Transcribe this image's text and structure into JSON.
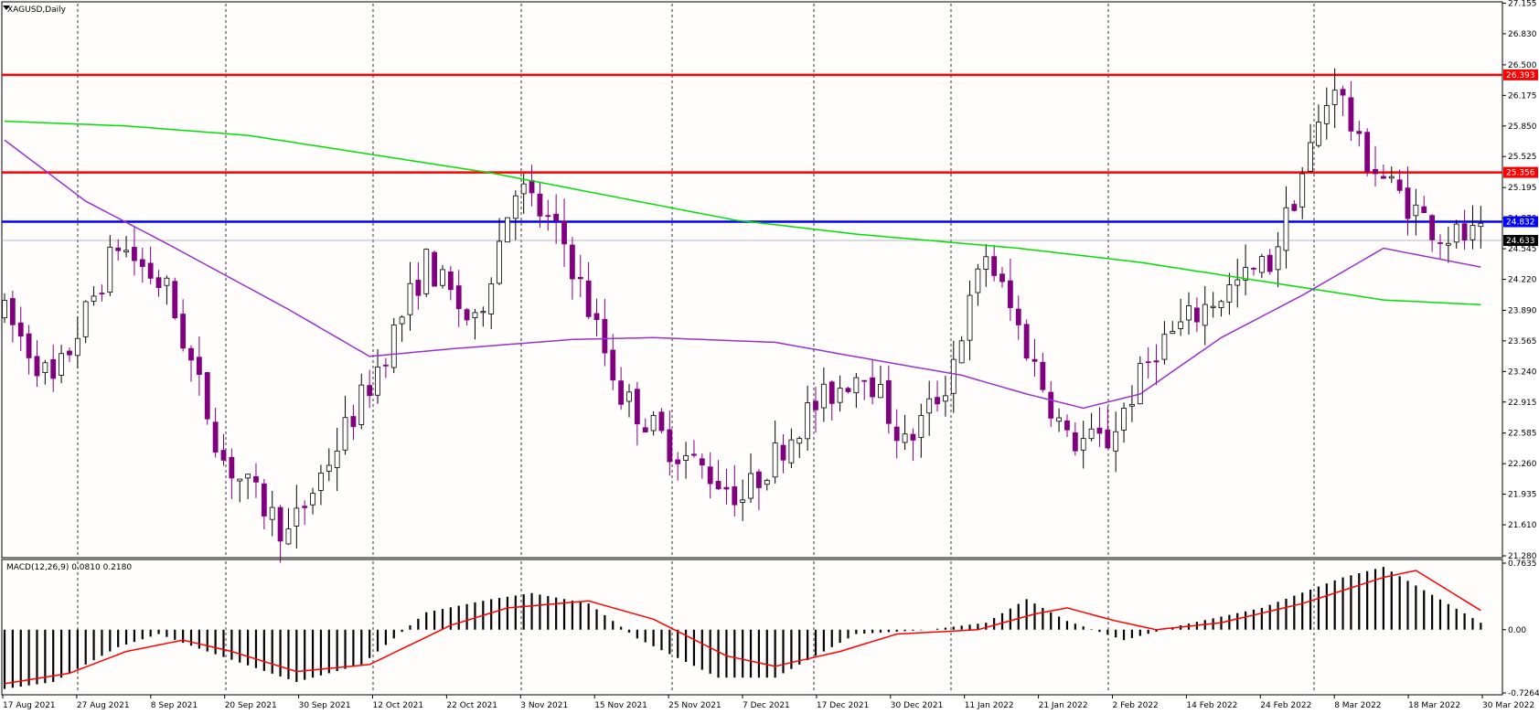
{
  "chart_data": [
    {
      "type": "candlestick",
      "title": "XAGUSD,Daily",
      "price_range": [
        21.28,
        27.15
      ],
      "y_ticks": [
        "27.155",
        "26.830",
        "26.500",
        "26.175",
        "25.850",
        "25.525",
        "25.195",
        "24.870",
        "24.545",
        "24.220",
        "23.890",
        "23.565",
        "23.240",
        "22.915",
        "22.585",
        "22.260",
        "21.935",
        "21.610",
        "21.280"
      ],
      "x_ticks": [
        "17 Aug 2021",
        "27 Aug 2021",
        "8 Sep 2021",
        "20 Sep 2021",
        "30 Sep 2021",
        "12 Oct 2021",
        "22 Oct 2021",
        "3 Nov 2021",
        "15 Nov 2021",
        "25 Nov 2021",
        "7 Dec 2021",
        "17 Dec 2021",
        "30 Dec 2021",
        "11 Jan 2022",
        "21 Jan 2022",
        "2 Feb 2022",
        "14 Feb 2022",
        "24 Feb 2022",
        "8 Mar 2022",
        "18 Mar 2022",
        "30 Mar 2022"
      ],
      "grid": "dashed-vertical",
      "horizontal_levels": [
        {
          "label": "26.393",
          "value": 26.393,
          "color": "#ff0000"
        },
        {
          "label": "25.356",
          "value": 25.356,
          "color": "#ff0000"
        },
        {
          "label": "24.832",
          "value": 24.832,
          "color": "#0000ff"
        }
      ],
      "current_price": {
        "label": "24.633",
        "value": 24.633
      },
      "colors": {
        "bull": "#ffffff",
        "bear": "#800080",
        "outline": "#000000",
        "ma_fast": "#9932cc",
        "ma_slow": "#00e000"
      },
      "anchors": [
        [
          0,
          23.85
        ],
        [
          6,
          23.1
        ],
        [
          14,
          24.6
        ],
        [
          20,
          24.1
        ],
        [
          27,
          22.3
        ],
        [
          35,
          21.5
        ],
        [
          45,
          23.1
        ],
        [
          52,
          24.4
        ],
        [
          58,
          23.7
        ],
        [
          63,
          25.25
        ],
        [
          69,
          24.6
        ],
        [
          76,
          23.0
        ],
        [
          82,
          22.45
        ],
        [
          91,
          21.9
        ],
        [
          99,
          22.8
        ],
        [
          106,
          23.3
        ],
        [
          111,
          22.45
        ],
        [
          116,
          23.1
        ],
        [
          121,
          24.5
        ],
        [
          126,
          23.5
        ],
        [
          131,
          22.5
        ],
        [
          136,
          22.5
        ],
        [
          142,
          23.5
        ],
        [
          149,
          24.0
        ],
        [
          156,
          24.4
        ],
        [
          159,
          25.1
        ],
        [
          164,
          26.35
        ],
        [
          167,
          25.6
        ],
        [
          171,
          25.2
        ],
        [
          177,
          24.7
        ],
        [
          182,
          24.65
        ]
      ],
      "ma_fast": [
        [
          0,
          25.7
        ],
        [
          10,
          25.05
        ],
        [
          20,
          24.6
        ],
        [
          35,
          23.9
        ],
        [
          45,
          23.4
        ],
        [
          55,
          23.48
        ],
        [
          70,
          23.58
        ],
        [
          80,
          23.6
        ],
        [
          95,
          23.55
        ],
        [
          108,
          23.35
        ],
        [
          118,
          23.2
        ],
        [
          126,
          23.0
        ],
        [
          133,
          22.85
        ],
        [
          140,
          23.0
        ],
        [
          150,
          23.6
        ],
        [
          160,
          24.05
        ],
        [
          170,
          24.55
        ],
        [
          182,
          24.35
        ]
      ],
      "ma_slow": [
        [
          0,
          25.9
        ],
        [
          15,
          25.85
        ],
        [
          30,
          25.75
        ],
        [
          45,
          25.55
        ],
        [
          60,
          25.35
        ],
        [
          75,
          25.1
        ],
        [
          90,
          24.85
        ],
        [
          105,
          24.7
        ],
        [
          125,
          24.55
        ],
        [
          140,
          24.4
        ],
        [
          155,
          24.2
        ],
        [
          170,
          24.0
        ],
        [
          182,
          23.95
        ]
      ]
    },
    {
      "type": "macd",
      "title": "MACD(12,26,9) 0.0810 0.2180",
      "y_ticks": [
        "0.7635",
        "0.00",
        "-0.7264"
      ],
      "ylim": [
        -0.7264,
        0.7635
      ],
      "hist_anchors": [
        [
          0,
          -0.68
        ],
        [
          6,
          -0.6
        ],
        [
          14,
          -0.2
        ],
        [
          19,
          -0.05
        ],
        [
          25,
          -0.25
        ],
        [
          36,
          -0.6
        ],
        [
          44,
          -0.4
        ],
        [
          52,
          0.2
        ],
        [
          60,
          0.35
        ],
        [
          65,
          0.42
        ],
        [
          72,
          0.3
        ],
        [
          78,
          -0.1
        ],
        [
          88,
          -0.55
        ],
        [
          95,
          -0.55
        ],
        [
          105,
          -0.05
        ],
        [
          114,
          0.0
        ],
        [
          121,
          0.08
        ],
        [
          126,
          0.35
        ],
        [
          131,
          0.1
        ],
        [
          138,
          -0.12
        ],
        [
          145,
          0.05
        ],
        [
          155,
          0.25
        ],
        [
          165,
          0.6
        ],
        [
          170,
          0.72
        ],
        [
          176,
          0.4
        ],
        [
          182,
          0.08
        ]
      ],
      "signal_anchors": [
        [
          0,
          -0.62
        ],
        [
          8,
          -0.5
        ],
        [
          15,
          -0.25
        ],
        [
          22,
          -0.12
        ],
        [
          28,
          -0.25
        ],
        [
          36,
          -0.48
        ],
        [
          45,
          -0.4
        ],
        [
          55,
          0.05
        ],
        [
          62,
          0.25
        ],
        [
          72,
          0.33
        ],
        [
          80,
          0.12
        ],
        [
          89,
          -0.3
        ],
        [
          95,
          -0.42
        ],
        [
          103,
          -0.25
        ],
        [
          110,
          -0.05
        ],
        [
          120,
          0.0
        ],
        [
          127,
          0.18
        ],
        [
          131,
          0.25
        ],
        [
          137,
          0.1
        ],
        [
          142,
          0.0
        ],
        [
          150,
          0.08
        ],
        [
          160,
          0.3
        ],
        [
          170,
          0.6
        ],
        [
          174,
          0.68
        ],
        [
          182,
          0.22
        ]
      ]
    }
  ]
}
